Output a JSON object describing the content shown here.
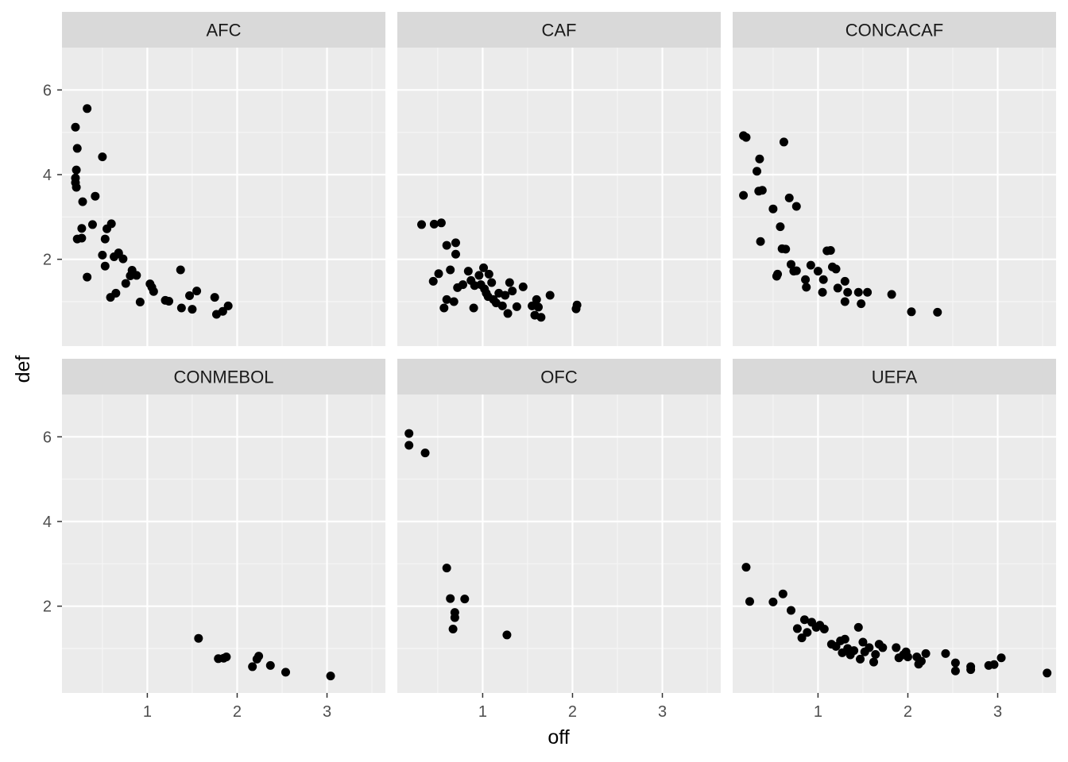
{
  "chart_data": {
    "type": "scatter",
    "layout": "facet_wrap",
    "facet_variable": "confederation",
    "xlabel": "off",
    "ylabel": "def",
    "xlim": [
      0.05,
      3.65
    ],
    "ylim": [
      -0.05,
      7.0
    ],
    "x_ticks": [
      1,
      2,
      3
    ],
    "y_ticks": [
      2,
      4,
      6
    ],
    "grid": true,
    "theme": {
      "panel_background": "#EBEBEB",
      "strip_background": "#D9D9D9",
      "grid_major": "#FFFFFF",
      "grid_minor": "#F5F5F5",
      "point_color": "#000000"
    },
    "facets": [
      {
        "name": "AFC",
        "points": [
          [
            0.2,
            5.12
          ],
          [
            0.33,
            5.56
          ],
          [
            0.22,
            4.62
          ],
          [
            0.21,
            4.11
          ],
          [
            0.5,
            4.42
          ],
          [
            0.2,
            3.92
          ],
          [
            0.2,
            3.81
          ],
          [
            0.21,
            3.7
          ],
          [
            0.42,
            3.49
          ],
          [
            0.28,
            3.36
          ],
          [
            0.27,
            2.73
          ],
          [
            0.27,
            2.5
          ],
          [
            0.22,
            2.48
          ],
          [
            0.39,
            2.82
          ],
          [
            0.6,
            2.84
          ],
          [
            0.55,
            2.72
          ],
          [
            0.53,
            2.48
          ],
          [
            0.33,
            1.58
          ],
          [
            0.5,
            2.1
          ],
          [
            0.53,
            1.84
          ],
          [
            0.63,
            2.06
          ],
          [
            0.68,
            2.13
          ],
          [
            0.73,
            2.01
          ],
          [
            0.68,
            2.15
          ],
          [
            0.83,
            1.74
          ],
          [
            0.81,
            1.61
          ],
          [
            0.88,
            1.62
          ],
          [
            0.76,
            1.43
          ],
          [
            0.65,
            1.2
          ],
          [
            0.59,
            1.1
          ],
          [
            0.92,
            0.99
          ],
          [
            1.03,
            1.42
          ],
          [
            1.05,
            1.34
          ],
          [
            1.07,
            1.24
          ],
          [
            1.2,
            1.03
          ],
          [
            1.24,
            1.01
          ],
          [
            1.37,
            1.75
          ],
          [
            1.47,
            1.14
          ],
          [
            1.55,
            1.25
          ],
          [
            1.38,
            0.85
          ],
          [
            1.5,
            0.82
          ],
          [
            1.75,
            1.1
          ],
          [
            1.77,
            0.7
          ],
          [
            1.84,
            0.77
          ],
          [
            1.9,
            0.9
          ]
        ]
      },
      {
        "name": "CAF",
        "points": [
          [
            0.32,
            2.82
          ],
          [
            0.46,
            2.83
          ],
          [
            0.54,
            2.86
          ],
          [
            0.6,
            2.33
          ],
          [
            0.7,
            2.39
          ],
          [
            0.7,
            2.12
          ],
          [
            0.45,
            1.48
          ],
          [
            0.51,
            1.66
          ],
          [
            0.64,
            1.75
          ],
          [
            0.72,
            1.33
          ],
          [
            0.78,
            1.4
          ],
          [
            0.84,
            1.72
          ],
          [
            0.87,
            1.5
          ],
          [
            0.91,
            1.38
          ],
          [
            0.96,
            1.62
          ],
          [
            0.98,
            1.4
          ],
          [
            1.01,
            1.8
          ],
          [
            1.02,
            1.3
          ],
          [
            1.04,
            1.2
          ],
          [
            1.07,
            1.65
          ],
          [
            1.1,
            1.45
          ],
          [
            1.12,
            1.05
          ],
          [
            1.15,
            0.97
          ],
          [
            1.18,
            1.2
          ],
          [
            1.22,
            0.9
          ],
          [
            1.25,
            1.15
          ],
          [
            1.28,
            0.72
          ],
          [
            1.3,
            1.45
          ],
          [
            1.33,
            1.25
          ],
          [
            1.38,
            0.88
          ],
          [
            1.45,
            1.35
          ],
          [
            1.55,
            0.9
          ],
          [
            1.58,
            0.68
          ],
          [
            1.62,
            0.87
          ],
          [
            1.65,
            0.63
          ],
          [
            1.6,
            1.05
          ],
          [
            1.75,
            1.15
          ],
          [
            2.04,
            0.83
          ],
          [
            2.05,
            0.92
          ],
          [
            0.6,
            1.05
          ],
          [
            0.68,
            1.0
          ],
          [
            0.57,
            0.85
          ],
          [
            0.9,
            0.85
          ],
          [
            1.06,
            1.12
          ]
        ]
      },
      {
        "name": "CONCACAF",
        "points": [
          [
            0.17,
            4.92
          ],
          [
            0.2,
            4.88
          ],
          [
            0.35,
            4.37
          ],
          [
            0.32,
            4.08
          ],
          [
            0.34,
            3.61
          ],
          [
            0.38,
            3.63
          ],
          [
            0.17,
            3.51
          ],
          [
            0.62,
            4.77
          ],
          [
            0.68,
            3.45
          ],
          [
            0.76,
            3.25
          ],
          [
            0.5,
            3.19
          ],
          [
            0.58,
            2.77
          ],
          [
            0.36,
            2.42
          ],
          [
            0.6,
            2.25
          ],
          [
            0.64,
            2.24
          ],
          [
            0.55,
            1.65
          ],
          [
            0.54,
            1.6
          ],
          [
            0.7,
            1.88
          ],
          [
            0.73,
            1.72
          ],
          [
            0.76,
            1.73
          ],
          [
            0.86,
            1.52
          ],
          [
            0.87,
            1.34
          ],
          [
            0.92,
            1.86
          ],
          [
            1.0,
            1.72
          ],
          [
            1.06,
            1.52
          ],
          [
            1.05,
            1.22
          ],
          [
            1.1,
            2.2
          ],
          [
            1.14,
            2.21
          ],
          [
            1.16,
            1.82
          ],
          [
            1.2,
            1.77
          ],
          [
            1.22,
            1.32
          ],
          [
            1.3,
            1.48
          ],
          [
            1.3,
            1.0
          ],
          [
            1.33,
            1.22
          ],
          [
            1.45,
            1.22
          ],
          [
            1.48,
            0.95
          ],
          [
            1.55,
            1.22
          ],
          [
            1.82,
            1.17
          ],
          [
            2.04,
            0.76
          ],
          [
            2.33,
            0.75
          ]
        ]
      },
      {
        "name": "CONMEBOL",
        "points": [
          [
            1.57,
            1.24
          ],
          [
            1.79,
            0.76
          ],
          [
            1.85,
            0.77
          ],
          [
            1.88,
            0.8
          ],
          [
            2.17,
            0.57
          ],
          [
            2.22,
            0.75
          ],
          [
            2.24,
            0.82
          ],
          [
            2.37,
            0.6
          ],
          [
            2.54,
            0.44
          ],
          [
            3.04,
            0.35
          ]
        ]
      },
      {
        "name": "OFC",
        "points": [
          [
            0.18,
            6.08
          ],
          [
            0.18,
            5.8
          ],
          [
            0.36,
            5.62
          ],
          [
            0.6,
            2.9
          ],
          [
            0.64,
            2.18
          ],
          [
            0.69,
            1.85
          ],
          [
            0.69,
            1.73
          ],
          [
            0.67,
            1.46
          ],
          [
            0.8,
            2.17
          ],
          [
            1.27,
            1.32
          ]
        ]
      },
      {
        "name": "UEFA",
        "points": [
          [
            0.2,
            2.92
          ],
          [
            0.24,
            2.11
          ],
          [
            0.5,
            2.1
          ],
          [
            0.61,
            2.29
          ],
          [
            0.7,
            1.9
          ],
          [
            0.77,
            1.47
          ],
          [
            0.85,
            1.68
          ],
          [
            0.82,
            1.25
          ],
          [
            0.88,
            1.38
          ],
          [
            0.93,
            1.62
          ],
          [
            0.98,
            1.5
          ],
          [
            1.02,
            1.55
          ],
          [
            1.07,
            1.46
          ],
          [
            1.15,
            1.1
          ],
          [
            1.2,
            1.05
          ],
          [
            1.25,
            1.18
          ],
          [
            1.27,
            0.9
          ],
          [
            1.3,
            1.22
          ],
          [
            1.33,
            1.0
          ],
          [
            1.36,
            0.85
          ],
          [
            1.4,
            0.95
          ],
          [
            1.45,
            1.5
          ],
          [
            1.47,
            0.75
          ],
          [
            1.5,
            1.15
          ],
          [
            1.52,
            0.92
          ],
          [
            1.57,
            1.02
          ],
          [
            1.62,
            0.68
          ],
          [
            1.64,
            0.86
          ],
          [
            1.68,
            1.1
          ],
          [
            1.72,
            1.02
          ],
          [
            1.87,
            1.02
          ],
          [
            1.9,
            0.78
          ],
          [
            1.95,
            0.85
          ],
          [
            1.98,
            0.92
          ],
          [
            2.0,
            0.8
          ],
          [
            2.1,
            0.8
          ],
          [
            2.12,
            0.63
          ],
          [
            2.15,
            0.7
          ],
          [
            2.2,
            0.88
          ],
          [
            2.42,
            0.88
          ],
          [
            2.53,
            0.66
          ],
          [
            2.53,
            0.47
          ],
          [
            2.7,
            0.57
          ],
          [
            2.7,
            0.5
          ],
          [
            2.9,
            0.6
          ],
          [
            2.96,
            0.62
          ],
          [
            3.04,
            0.78
          ],
          [
            3.55,
            0.42
          ]
        ]
      }
    ]
  }
}
